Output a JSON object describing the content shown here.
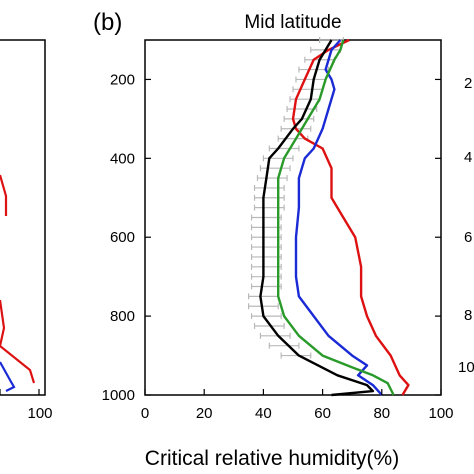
{
  "panel_label": "(b)",
  "left_panel": {
    "x_ticks": [
      "100"
    ],
    "series_colors": [
      "#dd1111",
      "#1a2bd6"
    ]
  },
  "right_panel": {
    "y_ticks": [
      "2",
      "4",
      "6",
      "8",
      "10"
    ]
  },
  "chart_data": {
    "type": "line",
    "title": "Mid latitude",
    "xlabel": "Critical relative humidity(%)",
    "ylabel": "",
    "xlim": [
      0,
      100
    ],
    "ylim": [
      1000,
      100
    ],
    "y_inverted": true,
    "x_ticks": [
      0,
      20,
      40,
      60,
      80,
      100
    ],
    "y_ticks": [
      200,
      400,
      600,
      800,
      1000
    ],
    "series": [
      {
        "color": "#dd1111",
        "points": [
          [
            69,
            100
          ],
          [
            62,
            125
          ],
          [
            57,
            150
          ],
          [
            54,
            200
          ],
          [
            51,
            250
          ],
          [
            50,
            300
          ],
          [
            51,
            325
          ],
          [
            54,
            350
          ],
          [
            60,
            375
          ],
          [
            63,
            425
          ],
          [
            63,
            500
          ],
          [
            67,
            550
          ],
          [
            71,
            600
          ],
          [
            73,
            675
          ],
          [
            73,
            750
          ],
          [
            75,
            800
          ],
          [
            78,
            850
          ],
          [
            83,
            900
          ],
          [
            86,
            950
          ],
          [
            89,
            975
          ],
          [
            87,
            1000
          ]
        ]
      },
      {
        "color": "#1a2bd6",
        "points": [
          [
            66,
            100
          ],
          [
            63,
            125
          ],
          [
            61,
            175
          ],
          [
            63,
            200
          ],
          [
            64,
            225
          ],
          [
            62,
            275
          ],
          [
            60,
            325
          ],
          [
            57,
            375
          ],
          [
            54,
            400
          ],
          [
            52,
            450
          ],
          [
            52,
            525
          ],
          [
            51,
            600
          ],
          [
            51,
            700
          ],
          [
            52,
            750
          ],
          [
            57,
            800
          ],
          [
            62,
            850
          ],
          [
            70,
            900
          ],
          [
            75,
            925
          ],
          [
            72,
            950
          ],
          [
            77,
            975
          ],
          [
            80,
            1000
          ]
        ]
      },
      {
        "color": "#2a9a2a",
        "points": [
          [
            67,
            100
          ],
          [
            66,
            125
          ],
          [
            64,
            150
          ],
          [
            61,
            200
          ],
          [
            59,
            250
          ],
          [
            55,
            300
          ],
          [
            51,
            350
          ],
          [
            47,
            400
          ],
          [
            45,
            450
          ],
          [
            45,
            500
          ],
          [
            45,
            600
          ],
          [
            45,
            700
          ],
          [
            45,
            750
          ],
          [
            47,
            800
          ],
          [
            52,
            850
          ],
          [
            60,
            900
          ],
          [
            70,
            930
          ],
          [
            77,
            950
          ],
          [
            82,
            970
          ],
          [
            84,
            1000
          ]
        ]
      },
      {
        "color": "#000000",
        "points": [
          [
            63,
            100
          ],
          [
            61,
            125
          ],
          [
            59,
            150
          ],
          [
            57,
            200
          ],
          [
            56,
            250
          ],
          [
            53,
            300
          ],
          [
            50,
            325
          ],
          [
            45,
            375
          ],
          [
            42,
            400
          ],
          [
            41,
            450
          ],
          [
            40,
            500
          ],
          [
            40,
            600
          ],
          [
            40,
            700
          ],
          [
            39,
            750
          ],
          [
            40,
            800
          ],
          [
            45,
            850
          ],
          [
            52,
            900
          ],
          [
            65,
            950
          ],
          [
            75,
            975
          ],
          [
            77,
            990
          ],
          [
            63,
            1000
          ]
        ]
      },
      {
        "color": "#b9b9b9",
        "errorbars": [
          [
            63,
            100,
            4
          ],
          [
            61,
            125,
            5
          ],
          [
            59,
            150,
            5
          ],
          [
            57,
            175,
            5
          ],
          [
            56,
            200,
            5
          ],
          [
            55,
            225,
            5
          ],
          [
            54,
            250,
            5
          ],
          [
            53,
            275,
            5
          ],
          [
            52,
            300,
            5
          ],
          [
            51,
            325,
            5
          ],
          [
            50,
            350,
            5
          ],
          [
            47,
            375,
            5
          ],
          [
            45,
            400,
            5
          ],
          [
            44,
            425,
            5
          ],
          [
            43,
            450,
            5
          ],
          [
            42,
            475,
            5
          ],
          [
            42,
            500,
            5
          ],
          [
            42,
            525,
            5
          ],
          [
            41,
            550,
            5
          ],
          [
            41,
            575,
            5
          ],
          [
            41,
            600,
            5
          ],
          [
            41,
            625,
            5
          ],
          [
            41,
            650,
            5
          ],
          [
            41,
            675,
            5
          ],
          [
            41,
            700,
            5
          ],
          [
            41,
            725,
            5
          ],
          [
            40,
            750,
            5
          ],
          [
            40,
            775,
            5
          ],
          [
            41,
            800,
            5
          ],
          [
            42,
            825,
            5
          ],
          [
            44,
            850,
            5
          ],
          [
            47,
            875,
            5
          ],
          [
            51,
            900,
            5
          ]
        ]
      }
    ]
  }
}
